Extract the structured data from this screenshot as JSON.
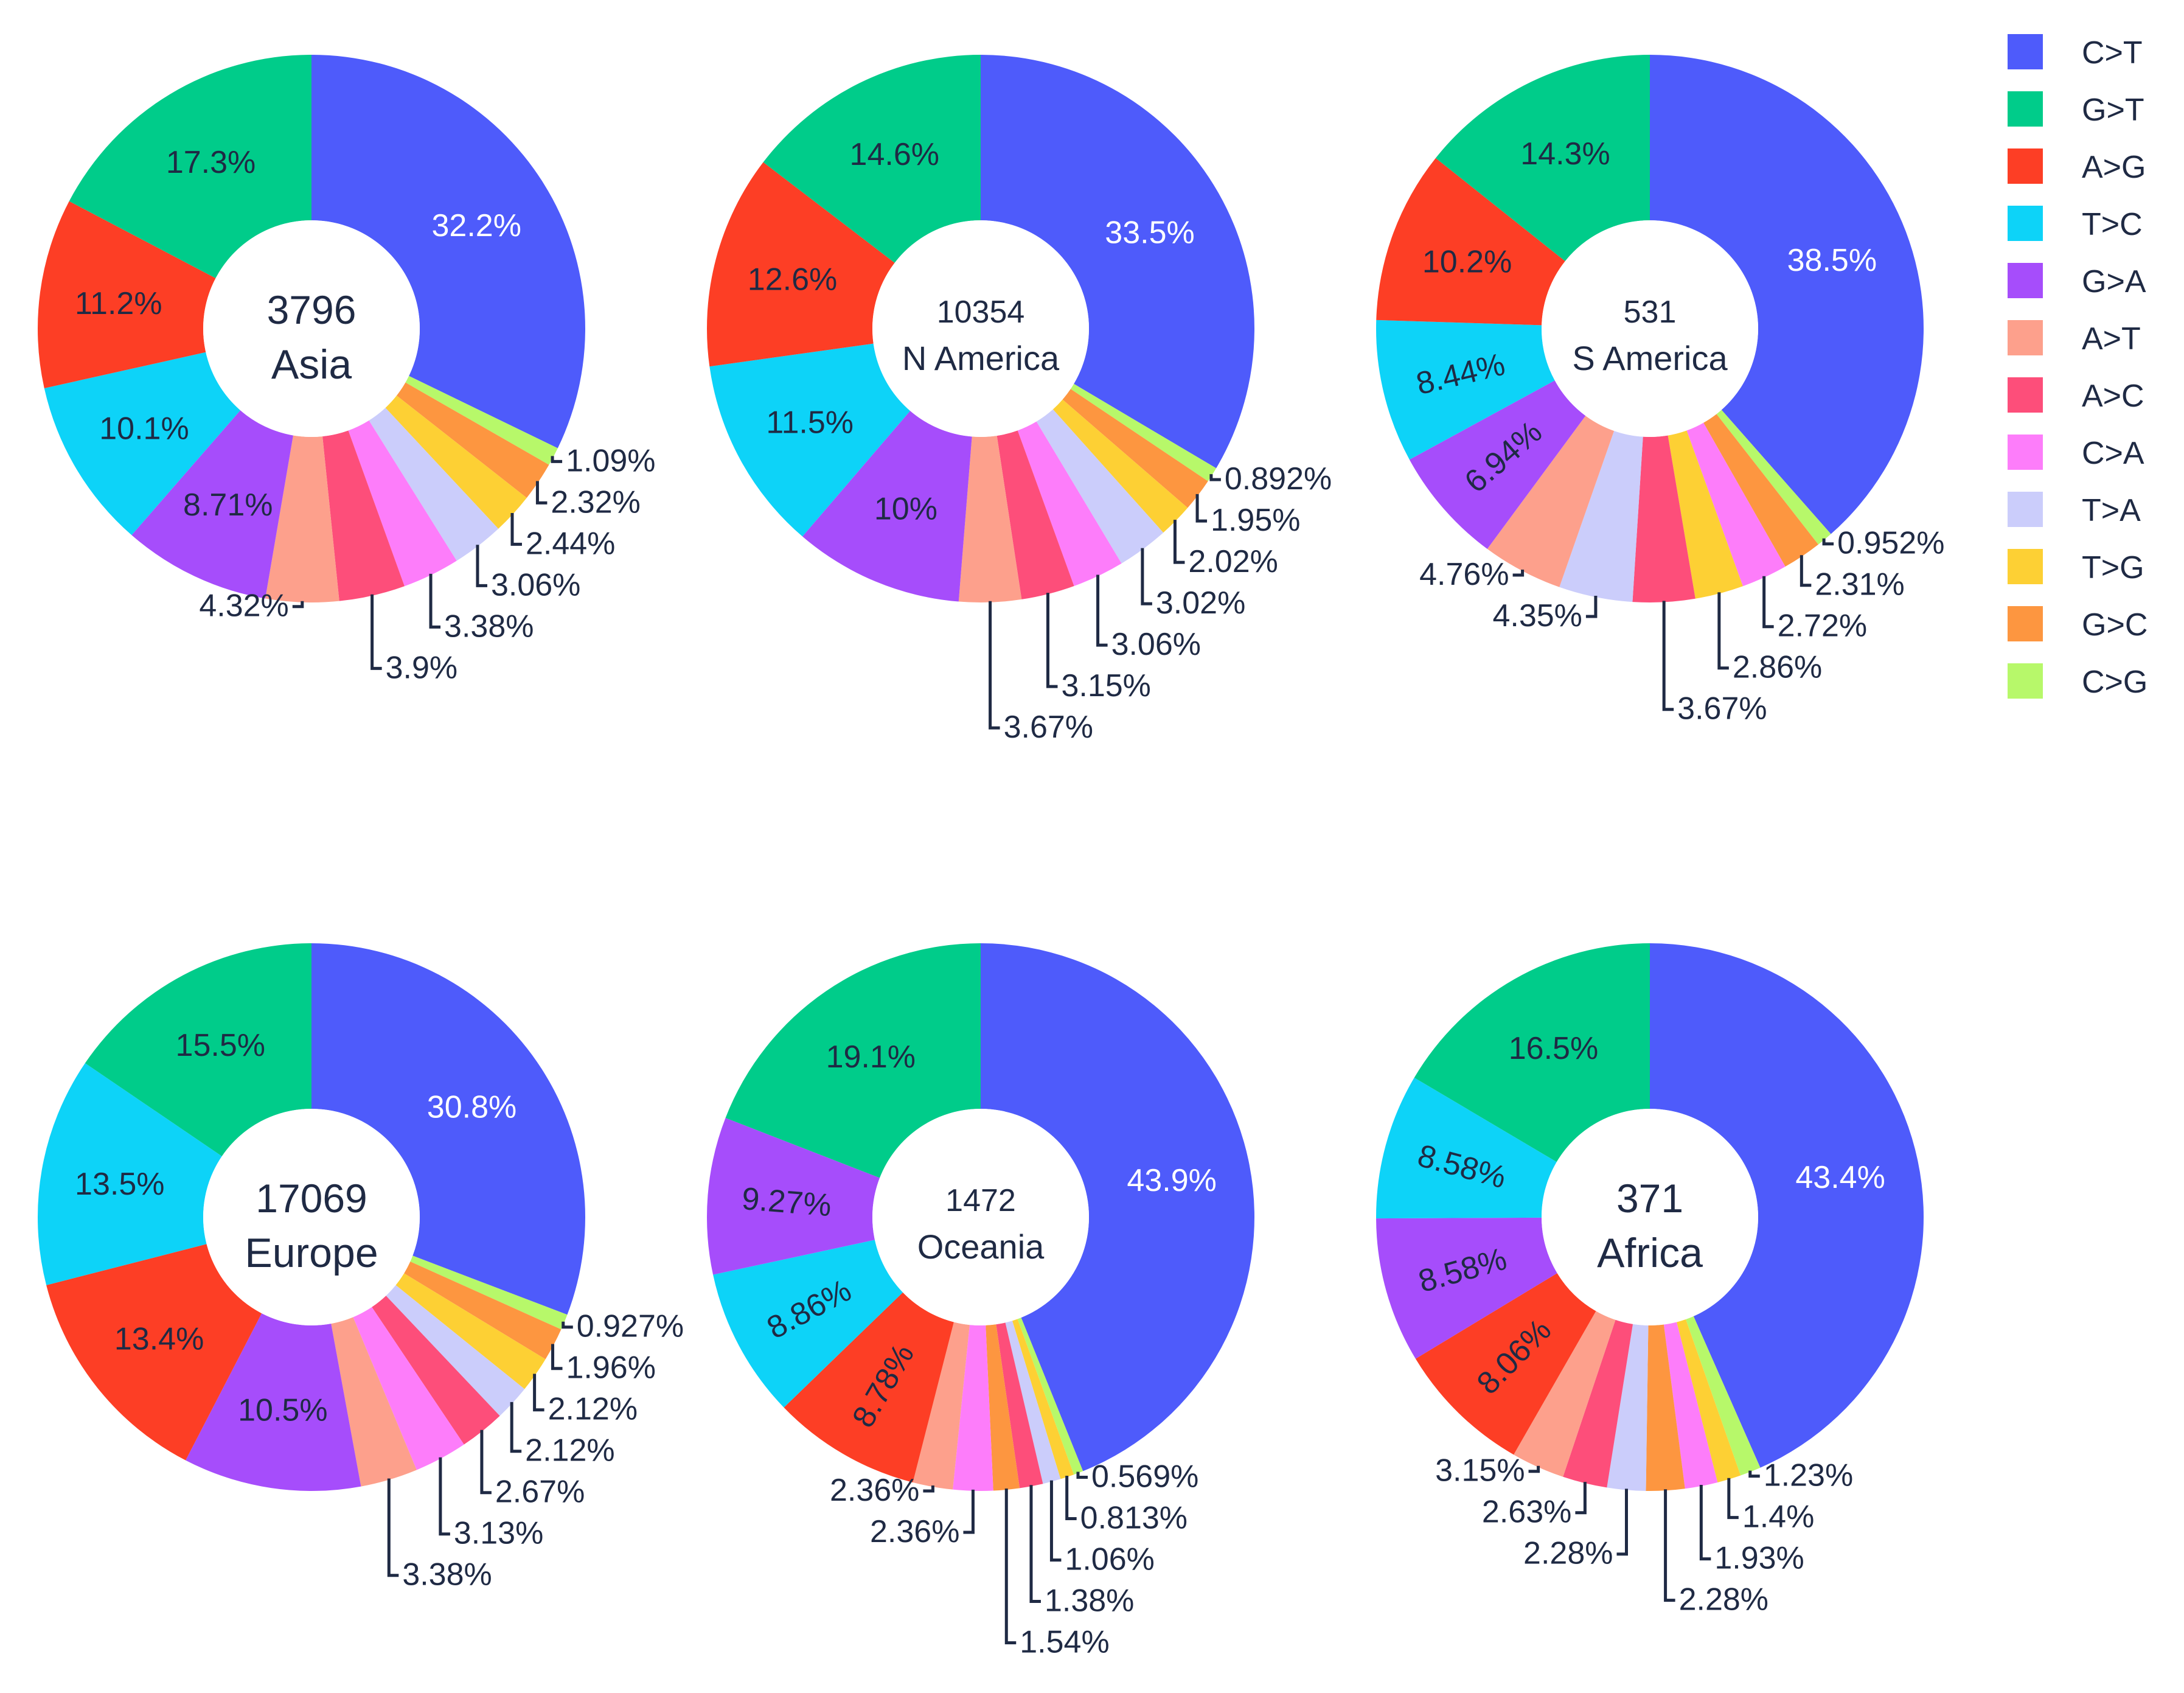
{
  "chart_data": {
    "type": "pie",
    "subtype": "donut",
    "categories": [
      "C>T",
      "G>T",
      "A>G",
      "T>C",
      "G>A",
      "A>T",
      "A>C",
      "C>A",
      "T>A",
      "T>G",
      "G>C",
      "C>G"
    ],
    "colors": {
      "C>T": "#4e5bfb",
      "G>T": "#00cc8a",
      "A>G": "#fd3e25",
      "T>C": "#0dd3f8",
      "G>A": "#a64dfb",
      "A>T": "#fda08c",
      "A>C": "#fd4e7a",
      "C>A": "#fd7dfa",
      "T>A": "#cbcdfb",
      "T>G": "#fdd034",
      "G>C": "#fd9640",
      "C>G": "#b7f86a"
    },
    "legend_position": "top-right",
    "panels": [
      {
        "id": "asia",
        "count": "3796",
        "region": "Asia",
        "order": [
          "C>T",
          "C>G",
          "G>C",
          "T>G",
          "T>A",
          "C>A",
          "A>C",
          "A>T",
          "G>A",
          "T>C",
          "A>G",
          "G>T"
        ],
        "values": [
          32.2,
          1.09,
          2.32,
          2.44,
          3.06,
          3.38,
          3.9,
          4.32,
          8.71,
          10.1,
          11.2,
          17.3
        ],
        "labels": [
          "32.2%",
          "1.09%",
          "2.32%",
          "2.44%",
          "3.06%",
          "3.38%",
          "3.9%",
          "4.32%",
          "8.71%",
          "10.1%",
          "11.2%",
          "17.3%"
        ]
      },
      {
        "id": "n-america",
        "count": "10354",
        "region": "N America",
        "order": [
          "C>T",
          "C>G",
          "G>C",
          "T>G",
          "T>A",
          "C>A",
          "A>C",
          "A>T",
          "G>A",
          "T>C",
          "A>G",
          "G>T"
        ],
        "values": [
          33.5,
          0.892,
          1.95,
          2.02,
          3.02,
          3.06,
          3.15,
          3.67,
          10,
          11.5,
          12.6,
          14.6
        ],
        "labels": [
          "33.5%",
          "0.892%",
          "1.95%",
          "2.02%",
          "3.02%",
          "3.06%",
          "3.15%",
          "3.67%",
          "10%",
          "11.5%",
          "12.6%",
          "14.6%"
        ]
      },
      {
        "id": "s-america",
        "count": "531",
        "region": "S America",
        "order": [
          "C>T",
          "C>G",
          "G>C",
          "C>A",
          "T>G",
          "A>C",
          "T>A",
          "A>T",
          "G>A",
          "T>C",
          "A>G",
          "G>T"
        ],
        "values": [
          38.5,
          0.952,
          2.31,
          2.72,
          2.86,
          3.67,
          4.35,
          4.76,
          6.94,
          8.44,
          10.2,
          14.3
        ],
        "labels": [
          "38.5%",
          "0.952%",
          "2.31%",
          "2.72%",
          "2.86%",
          "3.67%",
          "4.35%",
          "4.76%",
          "6.94%",
          "8.44%",
          "10.2%",
          "14.3%"
        ]
      },
      {
        "id": "europe",
        "count": "17069",
        "region": "Europe",
        "order": [
          "C>T",
          "C>G",
          "G>C",
          "T>G",
          "T>A",
          "A>C",
          "C>A",
          "A>T",
          "G>A",
          "A>G",
          "T>C",
          "G>T"
        ],
        "values": [
          30.8,
          0.927,
          1.96,
          2.12,
          2.12,
          2.67,
          3.13,
          3.38,
          10.5,
          13.4,
          13.5,
          15.5
        ],
        "labels": [
          "30.8%",
          "0.927%",
          "1.96%",
          "2.12%",
          "2.12%",
          "2.67%",
          "3.13%",
          "3.38%",
          "10.5%",
          "13.4%",
          "13.5%",
          "15.5%"
        ]
      },
      {
        "id": "oceania",
        "count": "1472",
        "region": "Oceania",
        "order": [
          "C>T",
          "C>G",
          "T>G",
          "T>A",
          "A>C",
          "G>C",
          "C>A",
          "A>T",
          "A>G",
          "T>C",
          "G>A",
          "G>T"
        ],
        "values": [
          43.9,
          0.569,
          0.813,
          1.06,
          1.38,
          1.54,
          2.36,
          2.36,
          8.78,
          8.86,
          9.27,
          19.1
        ],
        "labels": [
          "43.9%",
          "0.569%",
          "0.813%",
          "1.06%",
          "1.38%",
          "1.54%",
          "2.36%",
          "2.36%",
          "8.78%",
          "8.86%",
          "9.27%",
          "19.1%"
        ]
      },
      {
        "id": "africa",
        "count": "371",
        "region": "Africa",
        "order": [
          "C>T",
          "C>G",
          "T>G",
          "C>A",
          "G>C",
          "T>A",
          "A>C",
          "A>T",
          "A>G",
          "G>A",
          "T>C",
          "G>T"
        ],
        "values": [
          43.4,
          1.23,
          1.4,
          1.93,
          2.28,
          2.28,
          2.63,
          3.15,
          8.06,
          8.58,
          8.58,
          16.5
        ],
        "labels": [
          "43.4%",
          "1.23%",
          "1.4%",
          "1.93%",
          "2.28%",
          "2.28%",
          "2.63%",
          "3.15%",
          "8.06%",
          "8.58%",
          "8.58%",
          "16.5%"
        ]
      }
    ]
  }
}
